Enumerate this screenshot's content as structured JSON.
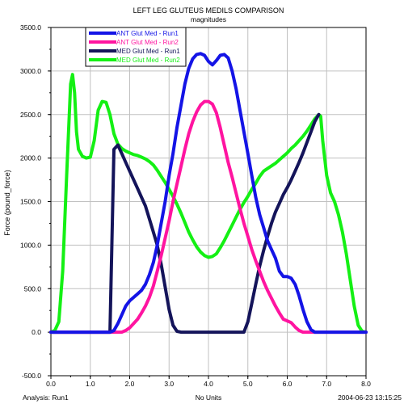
{
  "chart_data": {
    "type": "line",
    "title": "LEFT LEG GLUTEUS MEDILS COMPARISON",
    "subtitle": "magnitudes",
    "xlabel": "No Units",
    "ylabel": "Force (pound_force)",
    "xlim": [
      0.0,
      8.0
    ],
    "ylim": [
      -500.0,
      3500.0
    ],
    "xticks": [
      "0.0",
      "1.0",
      "2.0",
      "3.0",
      "4.0",
      "5.0",
      "6.0",
      "7.0",
      "8.0"
    ],
    "yticks": [
      "-500.0",
      "0.0",
      "500.0",
      "1000.0",
      "1500.0",
      "2000.0",
      "2500.0",
      "3000.0",
      "3500.0"
    ],
    "grid": true,
    "legend_position": "top-left",
    "series": [
      {
        "name": "ANT Glut Med - Run1",
        "color": "#1414e6",
        "x": [
          0.0,
          1.3,
          1.4,
          1.5,
          1.6,
          1.7,
          1.8,
          1.9,
          2.0,
          2.1,
          2.2,
          2.3,
          2.4,
          2.5,
          2.6,
          2.7,
          2.8,
          2.9,
          3.0,
          3.1,
          3.2,
          3.3,
          3.4,
          3.5,
          3.6,
          3.7,
          3.8,
          3.9,
          4.0,
          4.1,
          4.2,
          4.3,
          4.4,
          4.5,
          4.6,
          4.7,
          4.8,
          4.9,
          5.0,
          5.1,
          5.2,
          5.3,
          5.4,
          5.5,
          5.6,
          5.7,
          5.8,
          5.9,
          6.0,
          6.1,
          6.2,
          6.3,
          6.4,
          6.5,
          6.6,
          6.7,
          8.0
        ],
        "y": [
          0,
          0,
          0,
          0,
          20,
          100,
          200,
          300,
          360,
          400,
          440,
          480,
          550,
          660,
          800,
          1000,
          1250,
          1500,
          1800,
          2050,
          2350,
          2600,
          2850,
          3030,
          3140,
          3190,
          3200,
          3180,
          3110,
          3070,
          3120,
          3180,
          3190,
          3150,
          3000,
          2800,
          2550,
          2300,
          2050,
          1800,
          1550,
          1350,
          1200,
          1050,
          950,
          850,
          700,
          640,
          640,
          620,
          550,
          420,
          260,
          120,
          30,
          0,
          0
        ]
      },
      {
        "name": "ANT Glut Med - Run2",
        "color": "#ff14a0",
        "x": [
          0.0,
          1.8,
          1.9,
          2.0,
          2.1,
          2.2,
          2.3,
          2.4,
          2.5,
          2.6,
          2.7,
          2.8,
          2.9,
          3.0,
          3.1,
          3.2,
          3.3,
          3.4,
          3.5,
          3.6,
          3.7,
          3.8,
          3.9,
          4.0,
          4.1,
          4.2,
          4.3,
          4.4,
          4.5,
          4.6,
          4.7,
          4.8,
          4.9,
          5.0,
          5.1,
          5.2,
          5.3,
          5.4,
          5.5,
          5.6,
          5.7,
          5.8,
          5.9,
          6.0,
          6.1,
          6.2,
          6.3,
          6.4,
          6.5,
          8.0
        ],
        "y": [
          0,
          0,
          20,
          50,
          100,
          150,
          220,
          300,
          400,
          530,
          700,
          880,
          1080,
          1280,
          1500,
          1700,
          1900,
          2100,
          2280,
          2420,
          2530,
          2610,
          2650,
          2650,
          2620,
          2520,
          2350,
          2150,
          1950,
          1780,
          1600,
          1420,
          1250,
          1100,
          950,
          820,
          700,
          580,
          480,
          390,
          300,
          220,
          150,
          130,
          110,
          60,
          20,
          0,
          0,
          0
        ]
      },
      {
        "name": "MED Glut Med - Run1",
        "color": "#14145a",
        "x": [
          0.0,
          1.5,
          1.6,
          1.7,
          1.8,
          1.9,
          2.0,
          2.1,
          2.2,
          2.3,
          2.4,
          2.5,
          2.6,
          2.7,
          2.8,
          2.9,
          3.0,
          3.1,
          3.2,
          3.3,
          3.4,
          4.9,
          5.0,
          5.1,
          5.2,
          5.3,
          5.4,
          5.5,
          5.6,
          5.7,
          5.8,
          5.9,
          6.0,
          6.1,
          6.2,
          6.3,
          6.4,
          6.5,
          6.6,
          6.7,
          6.8
        ],
        "y": [
          0,
          0,
          2100,
          2150,
          2050,
          1950,
          1850,
          1750,
          1650,
          1550,
          1450,
          1300,
          1150,
          1000,
          780,
          520,
          260,
          80,
          10,
          0,
          0,
          0,
          120,
          330,
          550,
          760,
          940,
          1100,
          1250,
          1380,
          1480,
          1580,
          1660,
          1750,
          1850,
          1950,
          2060,
          2180,
          2300,
          2420,
          2500
        ]
      },
      {
        "name": "MED Glut Med - Run2",
        "color": "#14f014",
        "x": [
          0.0,
          0.1,
          0.2,
          0.3,
          0.4,
          0.5,
          0.55,
          0.6,
          0.65,
          0.7,
          0.8,
          0.9,
          1.0,
          1.1,
          1.2,
          1.3,
          1.4,
          1.5,
          1.6,
          1.7,
          1.8,
          1.9,
          2.0,
          2.1,
          2.2,
          2.3,
          2.4,
          2.5,
          2.6,
          2.7,
          2.8,
          2.9,
          3.0,
          3.1,
          3.2,
          3.3,
          3.4,
          3.5,
          3.6,
          3.7,
          3.8,
          3.9,
          4.0,
          4.1,
          4.2,
          4.3,
          4.4,
          4.5,
          4.6,
          4.7,
          4.8,
          4.9,
          5.0,
          5.1,
          5.2,
          5.3,
          5.4,
          5.5,
          5.6,
          5.7,
          5.8,
          5.9,
          6.0,
          6.1,
          6.2,
          6.3,
          6.4,
          6.5,
          6.6,
          6.7,
          6.8,
          6.85,
          6.9,
          7.0,
          7.1,
          7.2,
          7.3,
          7.4,
          7.5,
          7.6,
          7.7,
          7.8,
          7.9,
          8.0
        ],
        "y": [
          0,
          20,
          120,
          700,
          1800,
          2850,
          2960,
          2750,
          2300,
          2100,
          2020,
          2000,
          2010,
          2200,
          2550,
          2650,
          2640,
          2500,
          2280,
          2160,
          2110,
          2080,
          2060,
          2040,
          2030,
          2010,
          1990,
          1960,
          1920,
          1860,
          1790,
          1720,
          1640,
          1560,
          1470,
          1370,
          1260,
          1150,
          1060,
          980,
          920,
          880,
          860,
          870,
          900,
          970,
          1050,
          1140,
          1230,
          1320,
          1410,
          1490,
          1560,
          1640,
          1710,
          1790,
          1850,
          1880,
          1910,
          1940,
          1980,
          2020,
          2060,
          2110,
          2150,
          2200,
          2250,
          2310,
          2380,
          2450,
          2500,
          2480,
          2200,
          1800,
          1600,
          1500,
          1350,
          1150,
          900,
          600,
          300,
          80,
          10,
          0
        ]
      }
    ],
    "footer": {
      "analysis": "Analysis:  Run1",
      "units": "No Units",
      "timestamp": "2004-06-23  13:15:25"
    }
  }
}
